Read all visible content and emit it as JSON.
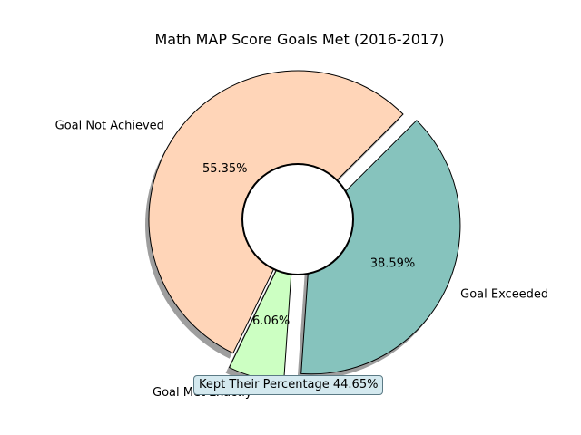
{
  "chart_data": {
    "type": "pie",
    "title": "Math MAP Score Goals Met (2016-2017)",
    "slices": [
      {
        "label": "Goal Not Achieved",
        "value": 55.35,
        "value_label": "55.35%",
        "color": "#ffd5b8",
        "exploded": false
      },
      {
        "label": "Goal Met Exactly",
        "value": 6.06,
        "value_label": "6.06%",
        "color": "#ccffc2",
        "exploded": true
      },
      {
        "label": "Goal Exceeded",
        "value": 38.59,
        "value_label": "38.59%",
        "color": "#86c3bd",
        "exploded": true
      }
    ],
    "donut": true,
    "shadow": true,
    "annotation": "Kept Their Percentage 44.65%"
  }
}
